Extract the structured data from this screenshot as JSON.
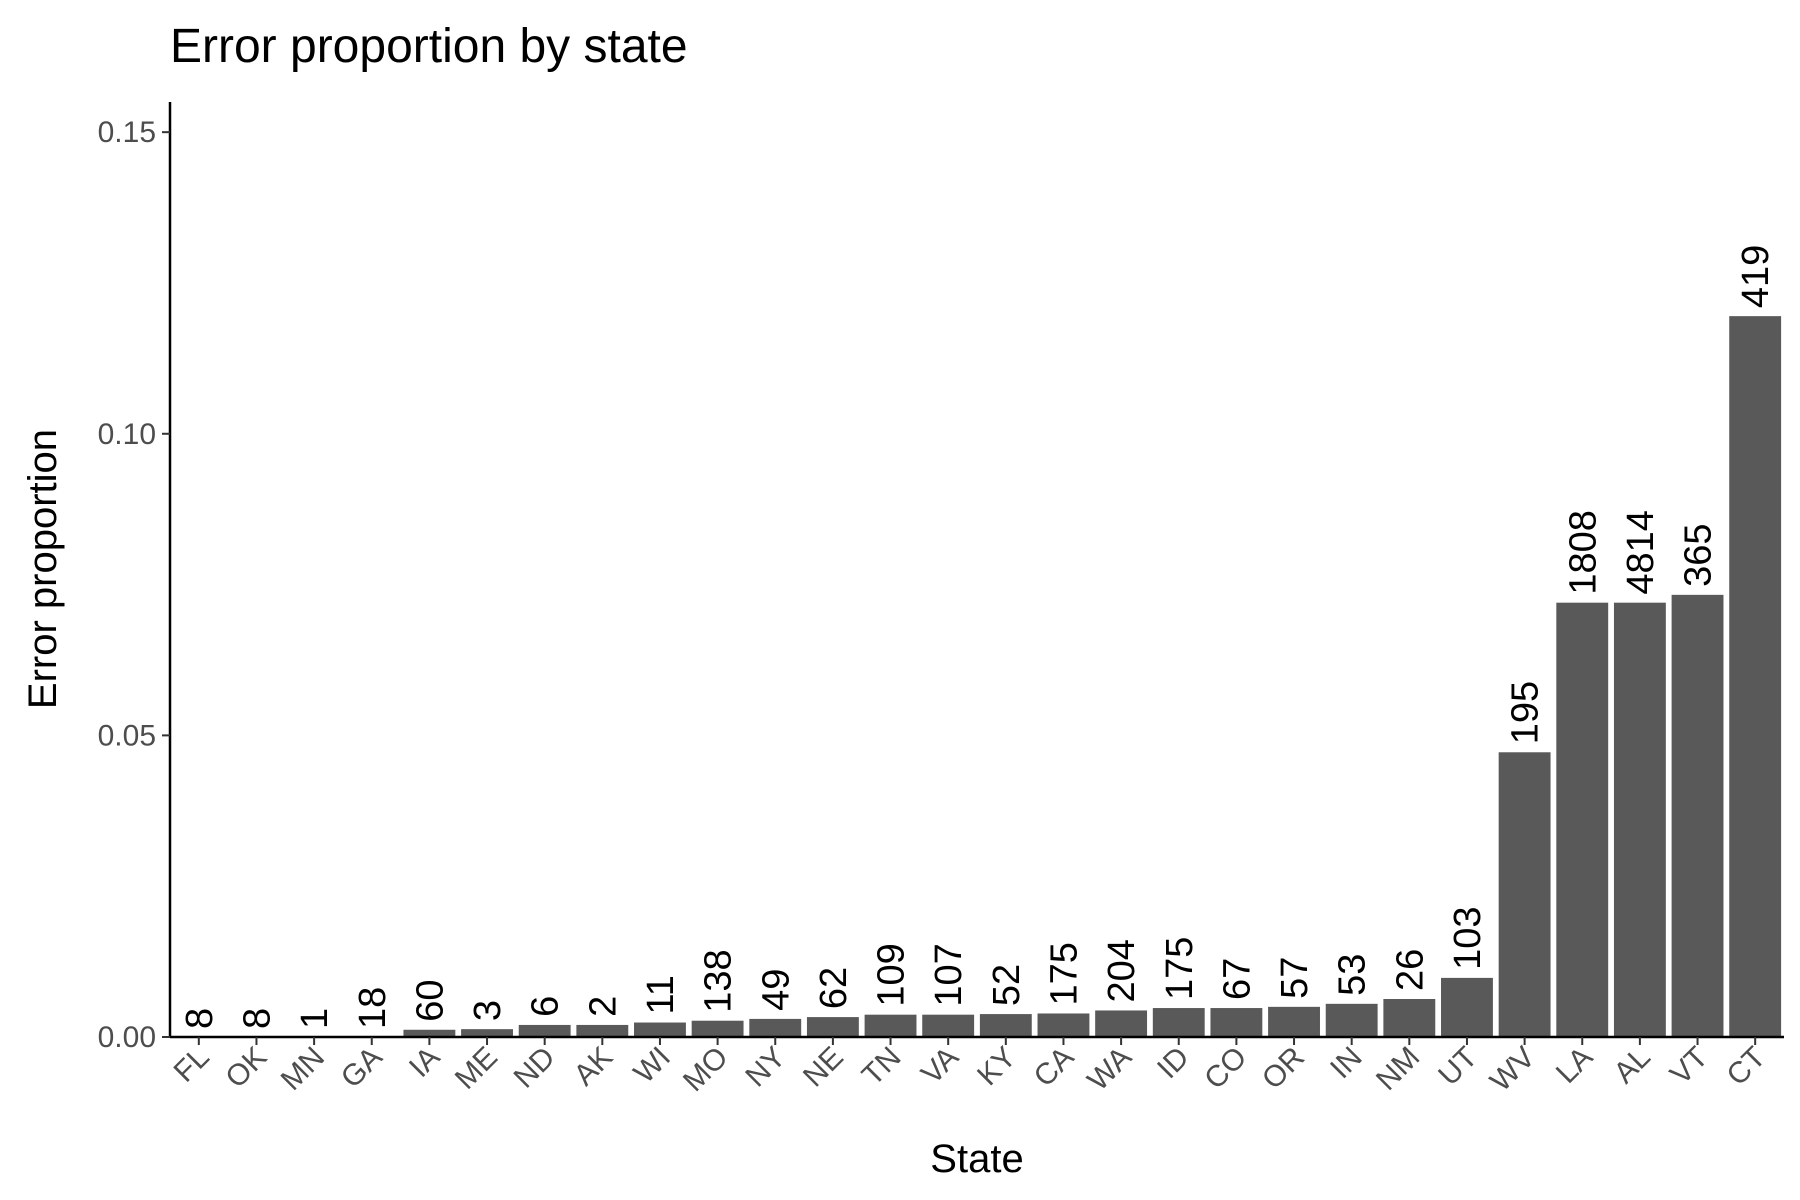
{
  "chart_data": {
    "type": "bar",
    "title": "Error proportion by state",
    "xlabel": "State",
    "ylabel": "Error proportion",
    "ylim": [
      0,
      0.155
    ],
    "yticks": [
      "0.00",
      "0.05",
      "0.10",
      "0.15"
    ],
    "ytick_values": [
      0,
      0.05,
      0.1,
      0.15
    ],
    "grid": false,
    "bar_color": "#595959",
    "categories": [
      "FL",
      "OK",
      "MN",
      "GA",
      "IA",
      "ME",
      "ND",
      "AK",
      "WI",
      "MO",
      "NY",
      "NE",
      "TN",
      "VA",
      "KY",
      "CA",
      "WA",
      "ID",
      "CO",
      "OR",
      "IN",
      "NM",
      "UT",
      "WV",
      "LA",
      "AL",
      "VT",
      "CT"
    ],
    "values": [
      0,
      0,
      0,
      0,
      0.0012,
      0.0013,
      0.002,
      0.002,
      0.0024,
      0.0027,
      0.003,
      0.0033,
      0.0037,
      0.0037,
      0.0038,
      0.0039,
      0.0044,
      0.0048,
      0.0048,
      0.005,
      0.0055,
      0.0063,
      0.0098,
      0.0472,
      0.072,
      0.072,
      0.0733,
      0.1195
    ],
    "labels": [
      "8",
      "8",
      "1",
      "18",
      "60",
      "3",
      "6",
      "2",
      "11",
      "138",
      "49",
      "62",
      "109",
      "107",
      "52",
      "175",
      "204",
      "175",
      "67",
      "57",
      "53",
      "26",
      "103",
      "195",
      "1808",
      "4814",
      "365",
      "419"
    ]
  }
}
